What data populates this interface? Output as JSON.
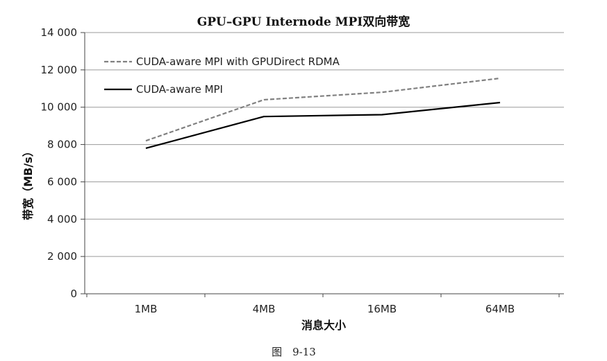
{
  "chart_data": {
    "type": "line",
    "title": "GPU–GPU Internode MPI双向带宽",
    "xlabel": "消息大小",
    "ylabel": "带宽（MB/s）",
    "categories": [
      "1MB",
      "4MB",
      "16MB",
      "64MB"
    ],
    "ylim": [
      0,
      14000
    ],
    "yticks": [
      0,
      2000,
      4000,
      6000,
      8000,
      10000,
      12000,
      14000
    ],
    "ytick_labels": [
      "0",
      "2 000",
      "4 000",
      "6 000",
      "8 000",
      "10 000",
      "12 000",
      "14 000"
    ],
    "grid": true,
    "legend_position": "top-left",
    "series": [
      {
        "name": "CUDA-aware MPI with GPUDirect RDMA",
        "values": [
          8200,
          10400,
          10800,
          11550
        ],
        "color": "#808080",
        "dash": true
      },
      {
        "name": "CUDA-aware MPI",
        "values": [
          7800,
          9500,
          9600,
          10250
        ],
        "color": "#000000",
        "dash": false
      }
    ]
  },
  "caption": "图　9-13"
}
